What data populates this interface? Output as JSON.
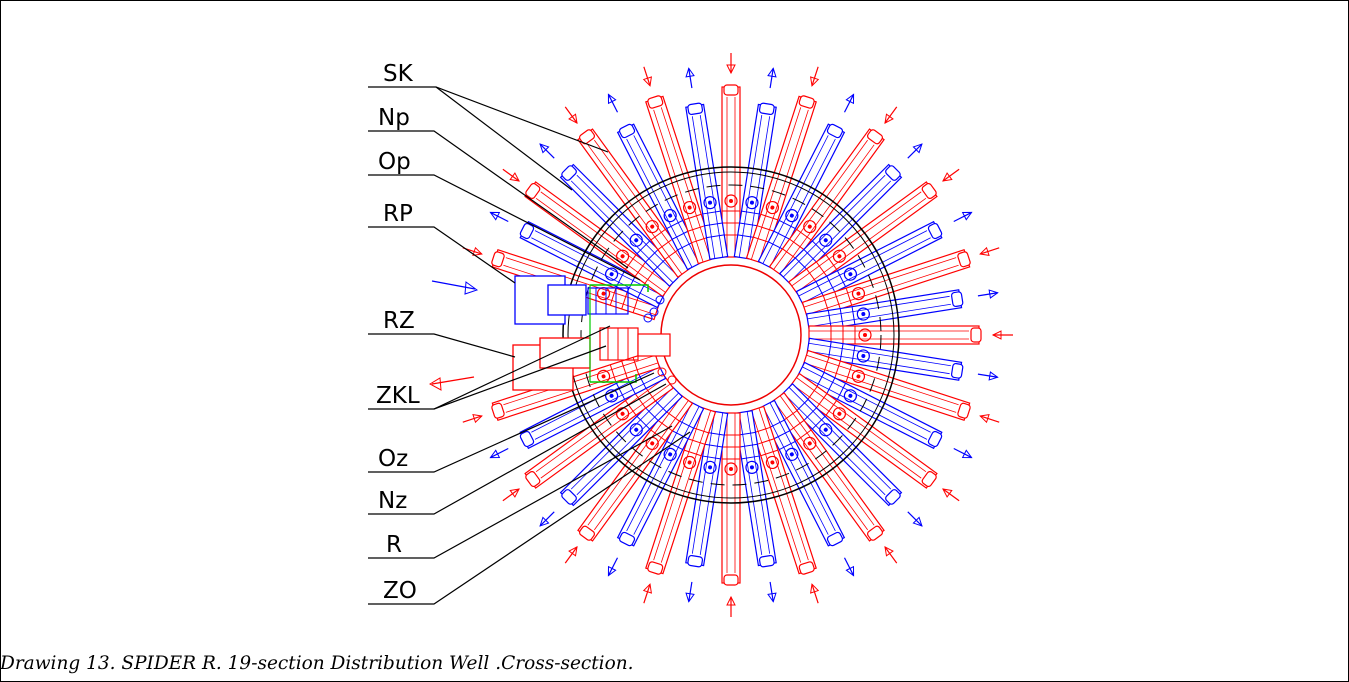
{
  "labels": {
    "SK": "SK",
    "Np": "Np",
    "Op": "Op",
    "RP": "RP",
    "RZ": "RZ",
    "ZKL": "ZKL",
    "Oz": "Oz",
    "Nz": "Nz",
    "R": "R",
    "ZO": "ZO"
  },
  "caption": "Drawing 13. SPIDER R. 19-section Distribution Well .Cross-section.",
  "colors": {
    "supply": "#ff0000",
    "return": "#0000ff",
    "frame": "#000000",
    "valve_box": "#00cc00"
  }
}
